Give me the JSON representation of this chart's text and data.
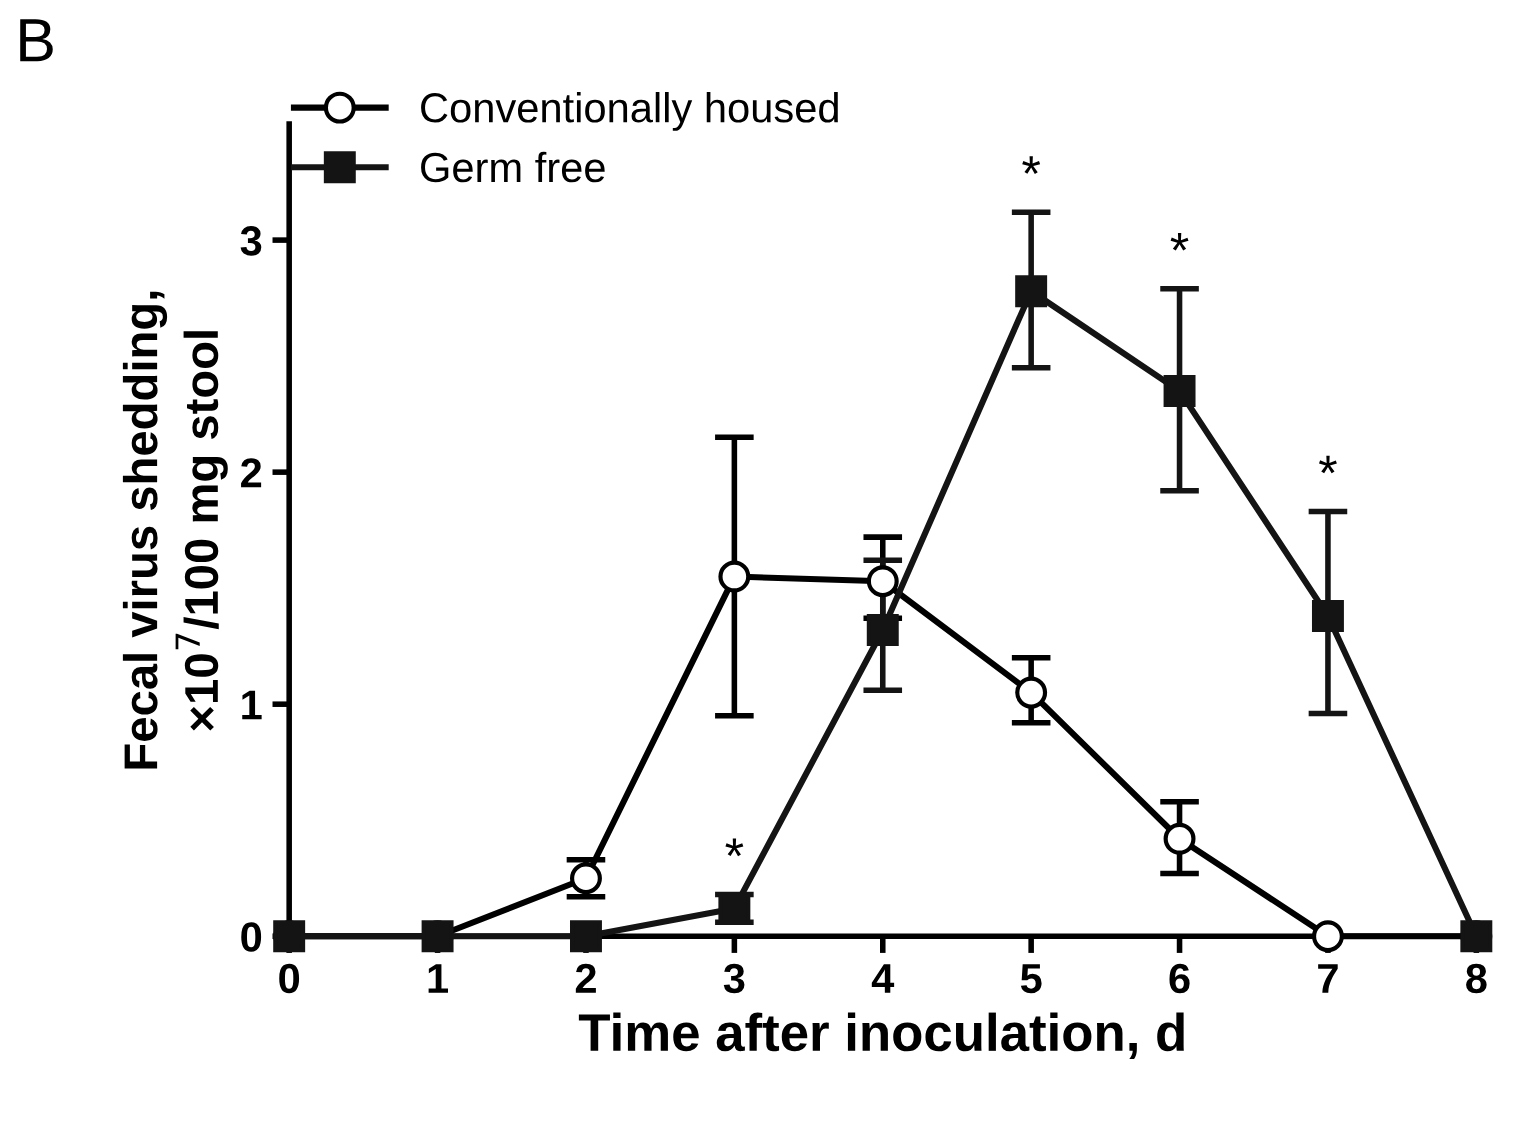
{
  "chart_data": {
    "type": "line",
    "xlabel": "Time after inoculation, d",
    "ylabel": "Fecal virus shedding,\n×10$^{7}$/100 mg stool",
    "x": [
      0,
      1,
      2,
      3,
      4,
      5,
      6,
      7,
      8
    ],
    "series": [
      {
        "name": "Conventionally housed",
        "color": "#000000",
        "marker": "circle",
        "values": [
          0,
          0,
          0.25,
          1.55,
          1.53,
          1.05,
          0.42,
          0,
          0
        ],
        "errors": [
          null,
          null,
          [
            0.17,
            0.33
          ],
          [
            0.95,
            2.15
          ],
          [
            1.37,
            1.72
          ],
          [
            0.92,
            1.2
          ],
          [
            0.27,
            0.58
          ],
          null,
          null
        ]
      },
      {
        "name": "Germ free",
        "color": "#141414",
        "marker": "square",
        "values": [
          0,
          0,
          0,
          0.12,
          1.32,
          2.78,
          2.35,
          1.38,
          0
        ],
        "errors": [
          null,
          null,
          null,
          [
            0.06,
            0.18
          ],
          [
            1.06,
            1.62
          ],
          [
            2.45,
            3.12
          ],
          [
            1.92,
            2.79
          ],
          [
            0.96,
            1.83
          ],
          null
        ]
      }
    ],
    "xlim": [
      0,
      8
    ],
    "ylim": [
      0,
      3.5
    ],
    "xticks": [
      0,
      1,
      2,
      3,
      4,
      5,
      6,
      7,
      8
    ],
    "yticks": [
      0,
      1,
      2,
      3
    ],
    "grid": false,
    "legend": "top left",
    "annotations": [
      "B",
      {
        "text": "*",
        "x": 3,
        "y": 0.12
      },
      {
        "text": "*",
        "x": 5,
        "y": 2.78
      },
      {
        "text": "*",
        "x": 6,
        "y": 2.35
      },
      {
        "text": "*",
        "x": 7,
        "y": 1.38
      }
    ]
  }
}
